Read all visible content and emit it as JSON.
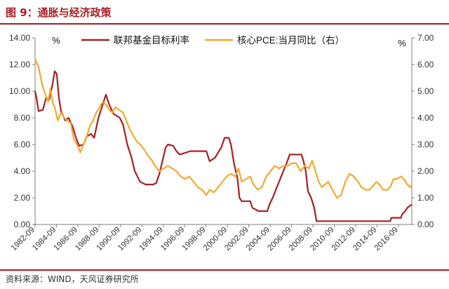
{
  "header": {
    "title": "图 9：通胀与经济政策"
  },
  "footer": {
    "source": "资料来源：WIND，天风证券研究所"
  },
  "colors": {
    "accent": "#a81e24",
    "fed_rate": "#a71e24",
    "core_pce": "#f2a92e",
    "axis": "#7f7f7f"
  },
  "chart_data": {
    "type": "line",
    "left_unit": "%",
    "right_unit": "%",
    "y_left": {
      "ylim": [
        0,
        14
      ],
      "ticks": [
        "0.00",
        "2.00",
        "4.00",
        "6.00",
        "8.00",
        "10.00",
        "12.00",
        "14.00"
      ]
    },
    "y_right": {
      "ylim": [
        0,
        7
      ],
      "ticks": [
        "0.00",
        "1.00",
        "2.00",
        "3.00",
        "4.00",
        "5.00",
        "6.00",
        "7.00"
      ]
    },
    "x_ticks": [
      "1982-09",
      "1984-09",
      "1986-09",
      "1988-09",
      "1990-09",
      "1992-09",
      "1994-09",
      "1996-09",
      "1998-09",
      "2000-09",
      "2002-09",
      "2004-09",
      "2006-09",
      "2008-09",
      "2010-09",
      "2012-09",
      "2014-09",
      "2016-09"
    ],
    "x_range": [
      1982.67,
      2017.92
    ],
    "grid": false,
    "legend_position": "top",
    "series": [
      {
        "name": "联邦基金目标利率",
        "axis": "left",
        "points": [
          [
            1982.67,
            10.0
          ],
          [
            1982.8,
            9.5
          ],
          [
            1983.0,
            8.5
          ],
          [
            1983.4,
            8.6
          ],
          [
            1983.7,
            9.5
          ],
          [
            1984.0,
            9.4
          ],
          [
            1984.3,
            10.5
          ],
          [
            1984.5,
            11.5
          ],
          [
            1984.7,
            11.3
          ],
          [
            1984.9,
            9.5
          ],
          [
            1985.1,
            8.5
          ],
          [
            1985.5,
            7.8
          ],
          [
            1985.8,
            8.0
          ],
          [
            1986.2,
            7.3
          ],
          [
            1986.5,
            6.5
          ],
          [
            1986.8,
            5.9
          ],
          [
            1987.2,
            6.0
          ],
          [
            1987.5,
            6.6
          ],
          [
            1987.9,
            6.8
          ],
          [
            1988.2,
            6.5
          ],
          [
            1988.6,
            8.0
          ],
          [
            1989.0,
            9.0
          ],
          [
            1989.3,
            9.75
          ],
          [
            1989.6,
            9.0
          ],
          [
            1990.0,
            8.3
          ],
          [
            1990.6,
            8.0
          ],
          [
            1990.9,
            7.5
          ],
          [
            1991.3,
            6.0
          ],
          [
            1991.7,
            5.0
          ],
          [
            1992.0,
            4.0
          ],
          [
            1992.5,
            3.2
          ],
          [
            1993.0,
            3.0
          ],
          [
            1993.7,
            3.0
          ],
          [
            1994.0,
            3.1
          ],
          [
            1994.3,
            3.8
          ],
          [
            1994.6,
            4.8
          ],
          [
            1994.9,
            5.8
          ],
          [
            1995.1,
            6.0
          ],
          [
            1995.6,
            5.9
          ],
          [
            1995.9,
            5.5
          ],
          [
            1996.2,
            5.25
          ],
          [
            1997.2,
            5.5
          ],
          [
            1998.7,
            5.5
          ],
          [
            1998.9,
            5.0
          ],
          [
            1999.0,
            4.75
          ],
          [
            1999.5,
            5.0
          ],
          [
            1999.8,
            5.4
          ],
          [
            2000.1,
            5.8
          ],
          [
            2000.4,
            6.5
          ],
          [
            2000.8,
            6.5
          ],
          [
            2001.0,
            6.0
          ],
          [
            2001.3,
            4.5
          ],
          [
            2001.6,
            3.5
          ],
          [
            2001.8,
            2.0
          ],
          [
            2002.0,
            1.75
          ],
          [
            2002.8,
            1.75
          ],
          [
            2003.0,
            1.25
          ],
          [
            2003.6,
            1.0
          ],
          [
            2004.4,
            1.0
          ],
          [
            2004.6,
            1.5
          ],
          [
            2004.9,
            2.0
          ],
          [
            2005.3,
            2.8
          ],
          [
            2005.6,
            3.4
          ],
          [
            2005.9,
            4.0
          ],
          [
            2006.2,
            4.6
          ],
          [
            2006.5,
            5.25
          ],
          [
            2007.6,
            5.25
          ],
          [
            2007.8,
            4.7
          ],
          [
            2008.0,
            4.0
          ],
          [
            2008.2,
            2.5
          ],
          [
            2008.5,
            2.0
          ],
          [
            2008.8,
            1.2
          ],
          [
            2009.0,
            0.25
          ],
          [
            2015.9,
            0.25
          ],
          [
            2016.0,
            0.5
          ],
          [
            2016.9,
            0.5
          ],
          [
            2017.0,
            0.75
          ],
          [
            2017.3,
            1.0
          ],
          [
            2017.5,
            1.25
          ],
          [
            2017.92,
            1.5
          ]
        ]
      },
      {
        "name": "核心PCE:当月同比（右）",
        "axis": "right",
        "points": [
          [
            1982.67,
            6.2
          ],
          [
            1983.0,
            5.9
          ],
          [
            1983.3,
            5.3
          ],
          [
            1983.6,
            4.9
          ],
          [
            1983.9,
            4.6
          ],
          [
            1984.1,
            5.1
          ],
          [
            1984.3,
            4.6
          ],
          [
            1984.5,
            4.4
          ],
          [
            1984.8,
            3.9
          ],
          [
            1985.1,
            4.2
          ],
          [
            1985.4,
            4.0
          ],
          [
            1985.7,
            3.9
          ],
          [
            1986.0,
            3.8
          ],
          [
            1986.3,
            3.2
          ],
          [
            1986.6,
            3.0
          ],
          [
            1986.9,
            2.7
          ],
          [
            1987.2,
            3.0
          ],
          [
            1987.5,
            3.3
          ],
          [
            1987.8,
            3.7
          ],
          [
            1988.1,
            3.9
          ],
          [
            1988.4,
            4.2
          ],
          [
            1988.7,
            4.4
          ],
          [
            1989.0,
            4.6
          ],
          [
            1989.3,
            4.5
          ],
          [
            1989.6,
            4.3
          ],
          [
            1989.9,
            4.2
          ],
          [
            1990.2,
            4.4
          ],
          [
            1990.5,
            4.3
          ],
          [
            1990.9,
            4.2
          ],
          [
            1991.2,
            3.9
          ],
          [
            1991.5,
            3.6
          ],
          [
            1991.9,
            3.3
          ],
          [
            1992.2,
            3.1
          ],
          [
            1992.5,
            3.0
          ],
          [
            1992.9,
            2.8
          ],
          [
            1993.2,
            2.6
          ],
          [
            1993.6,
            2.4
          ],
          [
            1993.9,
            2.2
          ],
          [
            1994.3,
            2.0
          ],
          [
            1994.7,
            2.1
          ],
          [
            1995.1,
            2.2
          ],
          [
            1995.5,
            2.1
          ],
          [
            1995.9,
            2.0
          ],
          [
            1996.3,
            1.8
          ],
          [
            1996.7,
            1.7
          ],
          [
            1997.1,
            1.8
          ],
          [
            1997.5,
            1.6
          ],
          [
            1997.9,
            1.4
          ],
          [
            1998.3,
            1.3
          ],
          [
            1998.7,
            1.1
          ],
          [
            1999.0,
            1.3
          ],
          [
            1999.4,
            1.2
          ],
          [
            1999.8,
            1.4
          ],
          [
            2000.2,
            1.6
          ],
          [
            2000.6,
            1.8
          ],
          [
            2001.0,
            1.9
          ],
          [
            2001.4,
            1.8
          ],
          [
            2001.7,
            2.1
          ],
          [
            2002.0,
            1.6
          ],
          [
            2002.4,
            1.7
          ],
          [
            2002.8,
            1.8
          ],
          [
            2003.1,
            1.5
          ],
          [
            2003.5,
            1.3
          ],
          [
            2003.9,
            1.4
          ],
          [
            2004.3,
            1.8
          ],
          [
            2004.7,
            2.0
          ],
          [
            2005.1,
            2.2
          ],
          [
            2005.5,
            2.1
          ],
          [
            2005.9,
            2.2
          ],
          [
            2006.3,
            2.2
          ],
          [
            2006.7,
            2.3
          ],
          [
            2007.1,
            2.3
          ],
          [
            2007.5,
            2.0
          ],
          [
            2007.9,
            2.2
          ],
          [
            2008.3,
            2.1
          ],
          [
            2008.6,
            2.4
          ],
          [
            2008.9,
            2.0
          ],
          [
            2009.2,
            1.6
          ],
          [
            2009.5,
            1.4
          ],
          [
            2009.8,
            1.5
          ],
          [
            2010.1,
            1.6
          ],
          [
            2010.5,
            1.3
          ],
          [
            2010.9,
            1.0
          ],
          [
            2011.3,
            1.1
          ],
          [
            2011.7,
            1.6
          ],
          [
            2012.1,
            1.9
          ],
          [
            2012.5,
            1.8
          ],
          [
            2012.9,
            1.6
          ],
          [
            2013.2,
            1.4
          ],
          [
            2013.6,
            1.3
          ],
          [
            2013.9,
            1.3
          ],
          [
            2014.2,
            1.4
          ],
          [
            2014.6,
            1.6
          ],
          [
            2014.9,
            1.5
          ],
          [
            2015.2,
            1.3
          ],
          [
            2015.6,
            1.3
          ],
          [
            2015.9,
            1.4
          ],
          [
            2016.2,
            1.7
          ],
          [
            2016.5,
            1.7
          ],
          [
            2016.9,
            1.8
          ],
          [
            2017.2,
            1.7
          ],
          [
            2017.5,
            1.5
          ],
          [
            2017.75,
            1.4
          ],
          [
            2017.92,
            1.5
          ]
        ]
      }
    ]
  }
}
